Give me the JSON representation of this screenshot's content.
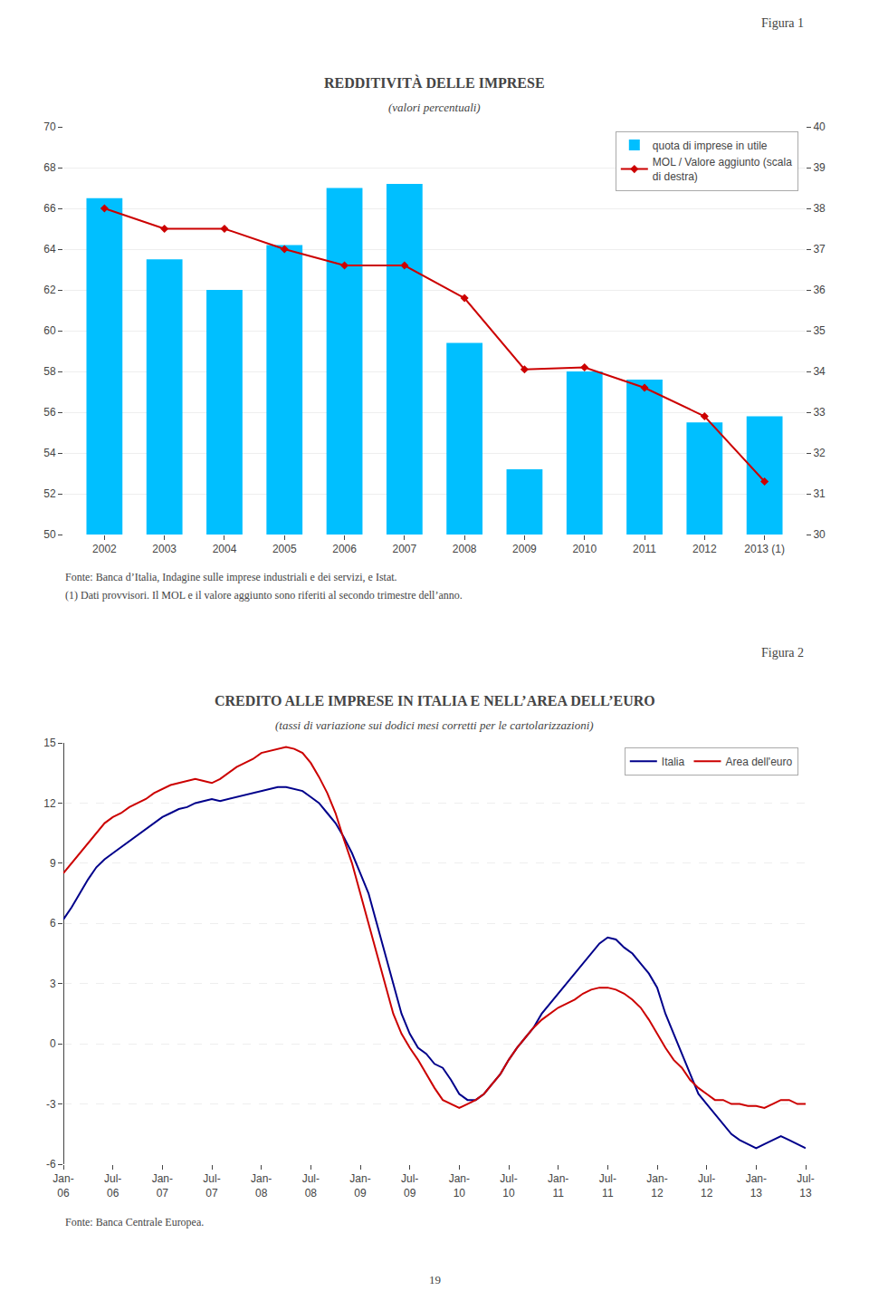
{
  "chart_data": [
    {
      "type": "bar",
      "title": "REDDITIVITÀ DELLE IMPRESE",
      "subtitle": "(valori percentuali)",
      "categories": [
        "2002",
        "2003",
        "2004",
        "2005",
        "2006",
        "2007",
        "2008",
        "2009",
        "2010",
        "2011",
        "2012",
        "2013 (1)"
      ],
      "series": [
        {
          "name": "quota di imprese in utile",
          "type": "bar",
          "color": "#00BFFF",
          "values": [
            66.5,
            63.5,
            62.0,
            64.2,
            67.0,
            67.2,
            59.4,
            53.2,
            58.0,
            57.6,
            55.5,
            55.8
          ]
        },
        {
          "name": "MOL / Valore aggiunto (scala\ndi destra)",
          "type": "line",
          "axis": "y2",
          "color": "#CC0000",
          "marker": "diamond",
          "values": [
            38.0,
            37.5,
            37.5,
            37.0,
            36.6,
            36.6,
            35.8,
            34.05,
            34.1,
            33.6,
            32.9,
            31.3
          ]
        }
      ],
      "ylim": [
        50,
        70
      ],
      "yticks": [
        50,
        52,
        54,
        56,
        58,
        60,
        62,
        64,
        66,
        68,
        70
      ],
      "y2lim": [
        30,
        40
      ],
      "y2ticks": [
        30,
        31,
        32,
        33,
        34,
        35,
        36,
        37,
        38,
        39,
        40
      ],
      "grid": true,
      "legend": "upper right",
      "annotations": [
        "Figura 1",
        "Fonte: Banca d’Italia, Indagine sulle imprese industriali e dei servizi, e Istat.",
        "(1) Dati provvisori. Il MOL e il valore aggiunto sono riferiti al secondo trimestre dell’anno."
      ]
    },
    {
      "type": "line",
      "title": "CREDITO ALLE IMPRESE IN ITALIA E NELL’AREA DELL’EURO",
      "subtitle": "(tassi di variazione sui dodici mesi corretti per le cartolarizzazioni)",
      "categories": [
        "Jan-\n06",
        null,
        null,
        null,
        null,
        null,
        "Jul-\n06",
        null,
        null,
        null,
        null,
        null,
        "Jan-\n07",
        null,
        null,
        null,
        null,
        null,
        "Jul-\n07",
        null,
        null,
        null,
        null,
        null,
        "Jan-\n08",
        null,
        null,
        null,
        null,
        null,
        "Jul-\n08",
        null,
        null,
        null,
        null,
        null,
        "Jan-\n09",
        null,
        null,
        null,
        null,
        null,
        "Jul-\n09",
        null,
        null,
        null,
        null,
        null,
        "Jan-\n10",
        null,
        null,
        null,
        null,
        null,
        "Jul-\n10",
        null,
        null,
        null,
        null,
        null,
        "Jan-\n11",
        null,
        null,
        null,
        null,
        null,
        "Jul-\n11",
        null,
        null,
        null,
        null,
        null,
        "Jan-\n12",
        null,
        null,
        null,
        null,
        null,
        "Jul-\n12",
        null,
        null,
        null,
        null,
        null,
        "Jan-\n13",
        null,
        null,
        null,
        null,
        null,
        "Jul-\n13"
      ],
      "series": [
        {
          "name": "Italia",
          "color": "#00008B",
          "values": [
            6.2,
            6.8,
            7.5,
            8.2,
            8.8,
            9.2,
            9.5,
            9.8,
            10.1,
            10.4,
            10.7,
            11.0,
            11.3,
            11.5,
            11.7,
            11.8,
            12.0,
            12.1,
            12.2,
            12.1,
            12.2,
            12.3,
            12.4,
            12.5,
            12.6,
            12.7,
            12.8,
            12.8,
            12.7,
            12.6,
            12.3,
            12.0,
            11.5,
            11.0,
            10.3,
            9.5,
            8.5,
            7.5,
            6.0,
            4.5,
            3.0,
            1.5,
            0.5,
            -0.2,
            -0.5,
            -1.0,
            -1.2,
            -1.8,
            -2.5,
            -2.8,
            -2.8,
            -2.5,
            -2.0,
            -1.5,
            -0.8,
            -0.2,
            0.3,
            0.8,
            1.5,
            2.0,
            2.5,
            3.0,
            3.5,
            4.0,
            4.5,
            5.0,
            5.3,
            5.2,
            4.8,
            4.5,
            4.0,
            3.5,
            2.8,
            1.5,
            0.5,
            -0.5,
            -1.5,
            -2.5,
            -3.0,
            -3.5,
            -4.0,
            -4.5,
            -4.8,
            -5.0,
            -5.2,
            -5.0,
            -4.8,
            -4.6,
            -4.8,
            -5.0,
            -5.2
          ]
        },
        {
          "name": "Area dell'euro",
          "color": "#CC0000",
          "values": [
            8.5,
            9.0,
            9.5,
            10.0,
            10.5,
            11.0,
            11.3,
            11.5,
            11.8,
            12.0,
            12.2,
            12.5,
            12.7,
            12.9,
            13.0,
            13.1,
            13.2,
            13.1,
            13.0,
            13.2,
            13.5,
            13.8,
            14.0,
            14.2,
            14.5,
            14.6,
            14.7,
            14.8,
            14.7,
            14.5,
            14.0,
            13.3,
            12.5,
            11.5,
            10.2,
            9.0,
            7.5,
            6.0,
            4.5,
            3.0,
            1.5,
            0.5,
            -0.2,
            -0.8,
            -1.5,
            -2.2,
            -2.8,
            -3.0,
            -3.2,
            -3.0,
            -2.8,
            -2.5,
            -2.0,
            -1.5,
            -0.8,
            -0.2,
            0.3,
            0.8,
            1.2,
            1.5,
            1.8,
            2.0,
            2.2,
            2.5,
            2.7,
            2.8,
            2.8,
            2.7,
            2.5,
            2.2,
            1.8,
            1.2,
            0.5,
            -0.2,
            -0.8,
            -1.2,
            -1.8,
            -2.2,
            -2.5,
            -2.8,
            -2.8,
            -3.0,
            -3.0,
            -3.1,
            -3.1,
            -3.2,
            -3.0,
            -2.8,
            -2.8,
            -3.0,
            -3.0
          ]
        }
      ],
      "ylim": [
        -6,
        15
      ],
      "yticks": [
        -6,
        -3,
        0,
        3,
        6,
        9,
        12,
        15
      ],
      "grid": true,
      "legend": "upper right",
      "annotations": [
        "Figura 2",
        "Fonte: Banca Centrale Europea.",
        "19"
      ]
    }
  ]
}
